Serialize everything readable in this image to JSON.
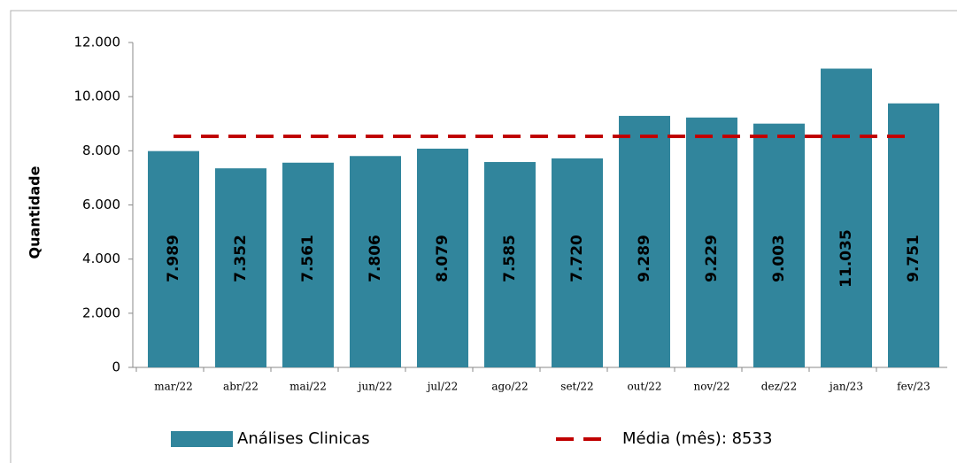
{
  "chart_data": {
    "type": "bar",
    "y_label": "Quantidade",
    "categories": [
      "mar/22",
      "abr/22",
      "mai/22",
      "jun/22",
      "jul/22",
      "ago/22",
      "set/22",
      "out/22",
      "nov/22",
      "dez/22",
      "jan/23",
      "fev/23"
    ],
    "series": [
      {
        "name": "Análises Clinicas",
        "type": "bar",
        "color": "#31859c",
        "values": [
          7989,
          7352,
          7561,
          7806,
          8079,
          7585,
          7720,
          9289,
          9229,
          9003,
          11035,
          9751
        ],
        "value_labels": [
          "7.989",
          "7.352",
          "7.561",
          "7.806",
          "8.079",
          "7.585",
          "7.720",
          "9.289",
          "9.229",
          "9.003",
          "11.035",
          "9.751"
        ],
        "label_color": "#d9f22a"
      },
      {
        "name": "Média (mês): 8533",
        "type": "line",
        "color": "#c00000",
        "values": [
          8533,
          8533,
          8533,
          8533,
          8533,
          8533,
          8533,
          8533,
          8533,
          8533,
          8533,
          8533
        ]
      }
    ],
    "ylim": [
      0,
      12000
    ],
    "yticks": [
      0,
      {
        "value": 2000,
        "label": "2.000"
      },
      {
        "value": 4000,
        "label": "4.000"
      },
      {
        "value": 6000,
        "label": "6.000"
      },
      {
        "value": 8000,
        "label": "8.000"
      },
      {
        "value": 10000,
        "label": "10.000"
      },
      {
        "value": 12000,
        "label": "12.000"
      }
    ],
    "grid": false,
    "legend": "bottom"
  }
}
